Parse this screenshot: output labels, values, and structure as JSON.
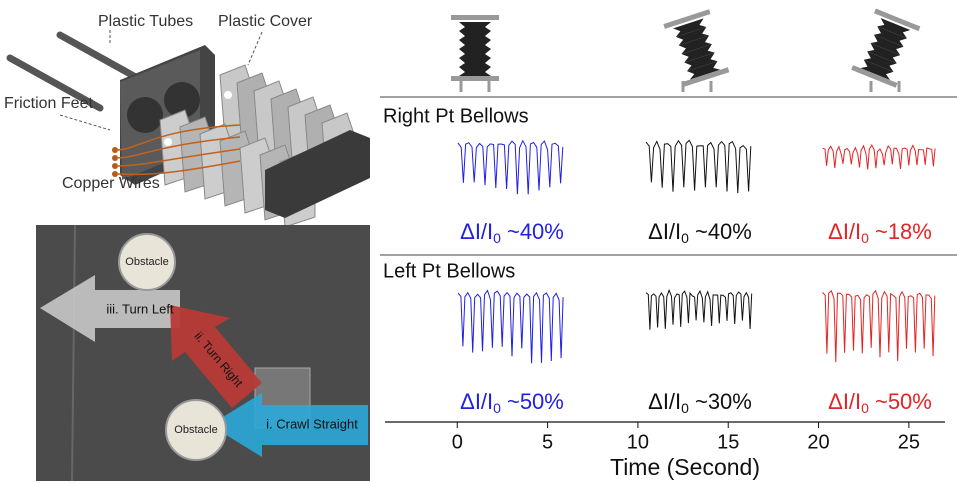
{
  "diagram": {
    "labels": [
      "Plastic Tubes",
      "Plastic Cover",
      "Friction Feet",
      "Copper Wires"
    ]
  },
  "photo": {
    "obstacles": [
      "Obstacle",
      "Obstacle"
    ],
    "arrows": [
      "iii. Turn Left",
      "ii. Turn Right",
      "i. Crawl Straight"
    ]
  },
  "signals": {
    "colors": [
      "#1f1fe6",
      "#111111",
      "#e42424"
    ],
    "rows": [
      {
        "title": "Right Pt Bellows",
        "labels": [
          {
            "symbol": "ΔI/I",
            "sub": "0",
            "change": "~40%"
          },
          {
            "symbol": "ΔI/I",
            "sub": "0",
            "change": "~40%"
          },
          {
            "symbol": "ΔI/I",
            "sub": "0",
            "change": "~18%"
          }
        ]
      },
      {
        "title": "Left Pt Bellows",
        "labels": [
          {
            "symbol": "ΔI/I",
            "sub": "0",
            "change": "~50%"
          },
          {
            "symbol": "ΔI/I",
            "sub": "0",
            "change": "~30%"
          },
          {
            "symbol": "ΔI/I",
            "sub": "0",
            "change": "~50%"
          }
        ]
      }
    ]
  },
  "axis": {
    "label": "Time (Second)",
    "xlim": [
      -4,
      27
    ],
    "xticks": [
      0,
      5,
      10,
      15,
      20,
      25
    ]
  }
}
